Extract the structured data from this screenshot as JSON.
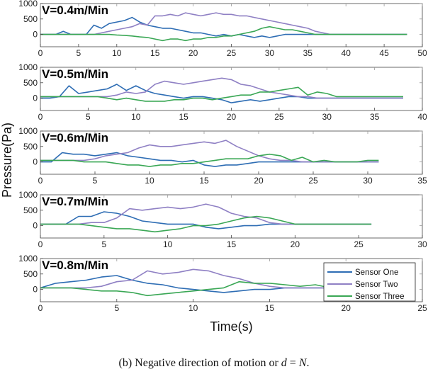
{
  "chart_data": {
    "type": "line",
    "title": "",
    "xlabel": "Time(s)",
    "ylabel": "Pressure(Pa)",
    "ylim": [
      -400,
      1000
    ],
    "yticks": [
      0,
      500,
      1000
    ],
    "grid": false,
    "legend": {
      "placement": "bottom-right of last panel",
      "entries": [
        "Sensor One",
        "Sensor Two",
        "Sensor Three"
      ]
    },
    "colors": {
      "Sensor One": "#2e6db4",
      "Sensor Two": "#8f80c4",
      "Sensor Three": "#3aa755"
    },
    "panels": [
      {
        "label": "V=0.4m/Min",
        "xlim": [
          0,
          50
        ],
        "xticks": [
          0,
          5,
          10,
          15,
          20,
          25,
          30,
          35,
          40,
          45,
          50
        ],
        "dt": 1,
        "series": [
          {
            "name": "Sensor One",
            "values": [
              0,
              0,
              0,
              100,
              0,
              0,
              0,
              300,
              200,
              350,
              400,
              450,
              550,
              400,
              300,
              250,
              200,
              200,
              150,
              100,
              50,
              50,
              0,
              -50,
              0,
              -50,
              0,
              -50,
              -100,
              -50,
              -100,
              -50,
              0,
              0,
              0,
              0,
              0,
              0,
              0,
              0,
              0,
              0,
              0,
              0,
              0,
              0,
              0,
              0,
              0
            ]
          },
          {
            "name": "Sensor Two",
            "values": [
              0,
              0,
              0,
              0,
              0,
              0,
              0,
              0,
              50,
              100,
              150,
              200,
              250,
              350,
              300,
              600,
              600,
              650,
              600,
              700,
              650,
              600,
              650,
              700,
              650,
              650,
              600,
              600,
              550,
              500,
              450,
              400,
              350,
              300,
              250,
              200,
              100,
              50,
              0,
              0,
              0,
              0,
              0,
              0,
              0,
              0,
              0,
              0,
              0
            ]
          },
          {
            "name": "Sensor Three",
            "values": [
              0,
              0,
              0,
              0,
              0,
              0,
              0,
              0,
              0,
              0,
              -20,
              -30,
              -50,
              -80,
              -100,
              -150,
              -200,
              -150,
              -150,
              -200,
              -150,
              -150,
              -100,
              -100,
              -50,
              -50,
              0,
              50,
              100,
              200,
              250,
              200,
              150,
              150,
              100,
              50,
              0,
              0,
              0,
              0,
              0,
              0,
              0,
              0,
              0,
              0,
              0,
              0,
              0
            ]
          }
        ]
      },
      {
        "label": "V=0.5m/Min",
        "xlim": [
          0,
          40
        ],
        "xticks": [
          0,
          5,
          10,
          15,
          20,
          25,
          30,
          35,
          40
        ],
        "dt": 1,
        "series": [
          {
            "name": "Sensor One",
            "values": [
              0,
              0,
              50,
              400,
              150,
              200,
              250,
              300,
              450,
              250,
              400,
              250,
              150,
              100,
              50,
              0,
              50,
              50,
              0,
              -50,
              -150,
              -100,
              -50,
              -100,
              -50,
              0,
              50,
              50,
              0,
              0,
              0,
              0,
              0,
              0,
              0,
              0,
              0,
              0,
              0
            ]
          },
          {
            "name": "Sensor Two",
            "values": [
              50,
              50,
              50,
              50,
              50,
              50,
              50,
              50,
              100,
              200,
              150,
              200,
              450,
              550,
              500,
              450,
              500,
              550,
              600,
              650,
              600,
              450,
              400,
              300,
              200,
              150,
              100,
              50,
              50,
              0,
              0,
              0,
              0,
              0,
              0,
              0,
              0,
              0,
              0
            ]
          },
          {
            "name": "Sensor Three",
            "values": [
              50,
              50,
              50,
              50,
              50,
              50,
              50,
              0,
              -50,
              0,
              -50,
              -100,
              -100,
              -100,
              -50,
              -50,
              0,
              0,
              -50,
              0,
              50,
              100,
              100,
              200,
              200,
              250,
              300,
              350,
              100,
              200,
              150,
              50,
              50,
              50,
              50,
              50,
              50,
              50,
              50
            ]
          }
        ]
      },
      {
        "label": "V=0.6m/Min",
        "xlim": [
          0,
          35
        ],
        "xticks": [
          0,
          5,
          10,
          15,
          20,
          25,
          30,
          35
        ],
        "dt": 1,
        "series": [
          {
            "name": "Sensor One",
            "values": [
              0,
              0,
              300,
              250,
              250,
              200,
              250,
              300,
              200,
              150,
              100,
              50,
              50,
              0,
              50,
              -100,
              -150,
              -100,
              -100,
              -50,
              0,
              0,
              0,
              0,
              0,
              0,
              0,
              0,
              0,
              0,
              0,
              0
            ]
          },
          {
            "name": "Sensor Two",
            "values": [
              50,
              50,
              50,
              50,
              50,
              100,
              200,
              250,
              300,
              450,
              550,
              500,
              500,
              550,
              600,
              650,
              600,
              700,
              500,
              350,
              200,
              100,
              50,
              50,
              0,
              0,
              0,
              0,
              0,
              0,
              0,
              0
            ]
          },
          {
            "name": "Sensor Three",
            "values": [
              50,
              50,
              50,
              50,
              0,
              0,
              0,
              -50,
              -100,
              -100,
              -150,
              -100,
              -100,
              -50,
              -50,
              0,
              50,
              100,
              100,
              100,
              200,
              250,
              200,
              50,
              150,
              0,
              50,
              0,
              0,
              0,
              50,
              50
            ]
          }
        ]
      },
      {
        "label": "V=0.7m/Min",
        "xlim": [
          0,
          30
        ],
        "xticks": [
          0,
          5,
          10,
          15,
          20,
          25,
          30
        ],
        "dt": 1,
        "series": [
          {
            "name": "Sensor One",
            "values": [
              50,
              50,
              50,
              300,
              300,
              450,
              400,
              300,
              150,
              100,
              50,
              50,
              50,
              -50,
              -100,
              -50,
              0,
              0,
              50,
              50,
              50,
              50,
              50,
              50,
              50,
              50,
              50
            ]
          },
          {
            "name": "Sensor Two",
            "values": [
              50,
              50,
              50,
              50,
              100,
              100,
              250,
              550,
              500,
              550,
              600,
              550,
              600,
              700,
              600,
              400,
              300,
              250,
              100,
              50,
              50,
              50,
              50,
              50,
              50,
              50,
              50
            ]
          },
          {
            "name": "Sensor Three",
            "values": [
              50,
              50,
              50,
              50,
              0,
              -50,
              -100,
              -100,
              -150,
              -200,
              -150,
              -100,
              0,
              0,
              50,
              150,
              250,
              300,
              250,
              150,
              50,
              50,
              50,
              50,
              50,
              50,
              50
            ]
          }
        ]
      },
      {
        "label": "V=0.8m/Min",
        "xlim": [
          0,
          25
        ],
        "xticks": [
          0,
          5,
          10,
          15,
          20,
          25
        ],
        "dt": 1,
        "series": [
          {
            "name": "Sensor One",
            "values": [
              50,
              200,
              250,
              300,
              400,
              450,
              300,
              200,
              150,
              50,
              0,
              -50,
              -100,
              -50,
              0,
              0,
              50,
              50,
              50,
              50,
              50,
              50,
              50
            ]
          },
          {
            "name": "Sensor Two",
            "values": [
              50,
              50,
              50,
              50,
              100,
              250,
              300,
              600,
              500,
              550,
              650,
              600,
              450,
              350,
              200,
              100,
              50,
              50,
              50,
              50,
              50,
              50,
              50
            ]
          },
          {
            "name": "Sensor Three",
            "values": [
              50,
              50,
              50,
              0,
              -50,
              -50,
              -100,
              -200,
              -150,
              -100,
              -50,
              0,
              50,
              250,
              200,
              200,
              150,
              100,
              150,
              50,
              50,
              50,
              50
            ]
          }
        ]
      }
    ]
  },
  "caption": {
    "prefix": "(b) Negative direction of motion or ",
    "var_d": "d",
    "equals": " = ",
    "var_N": "N",
    "suffix": "."
  }
}
